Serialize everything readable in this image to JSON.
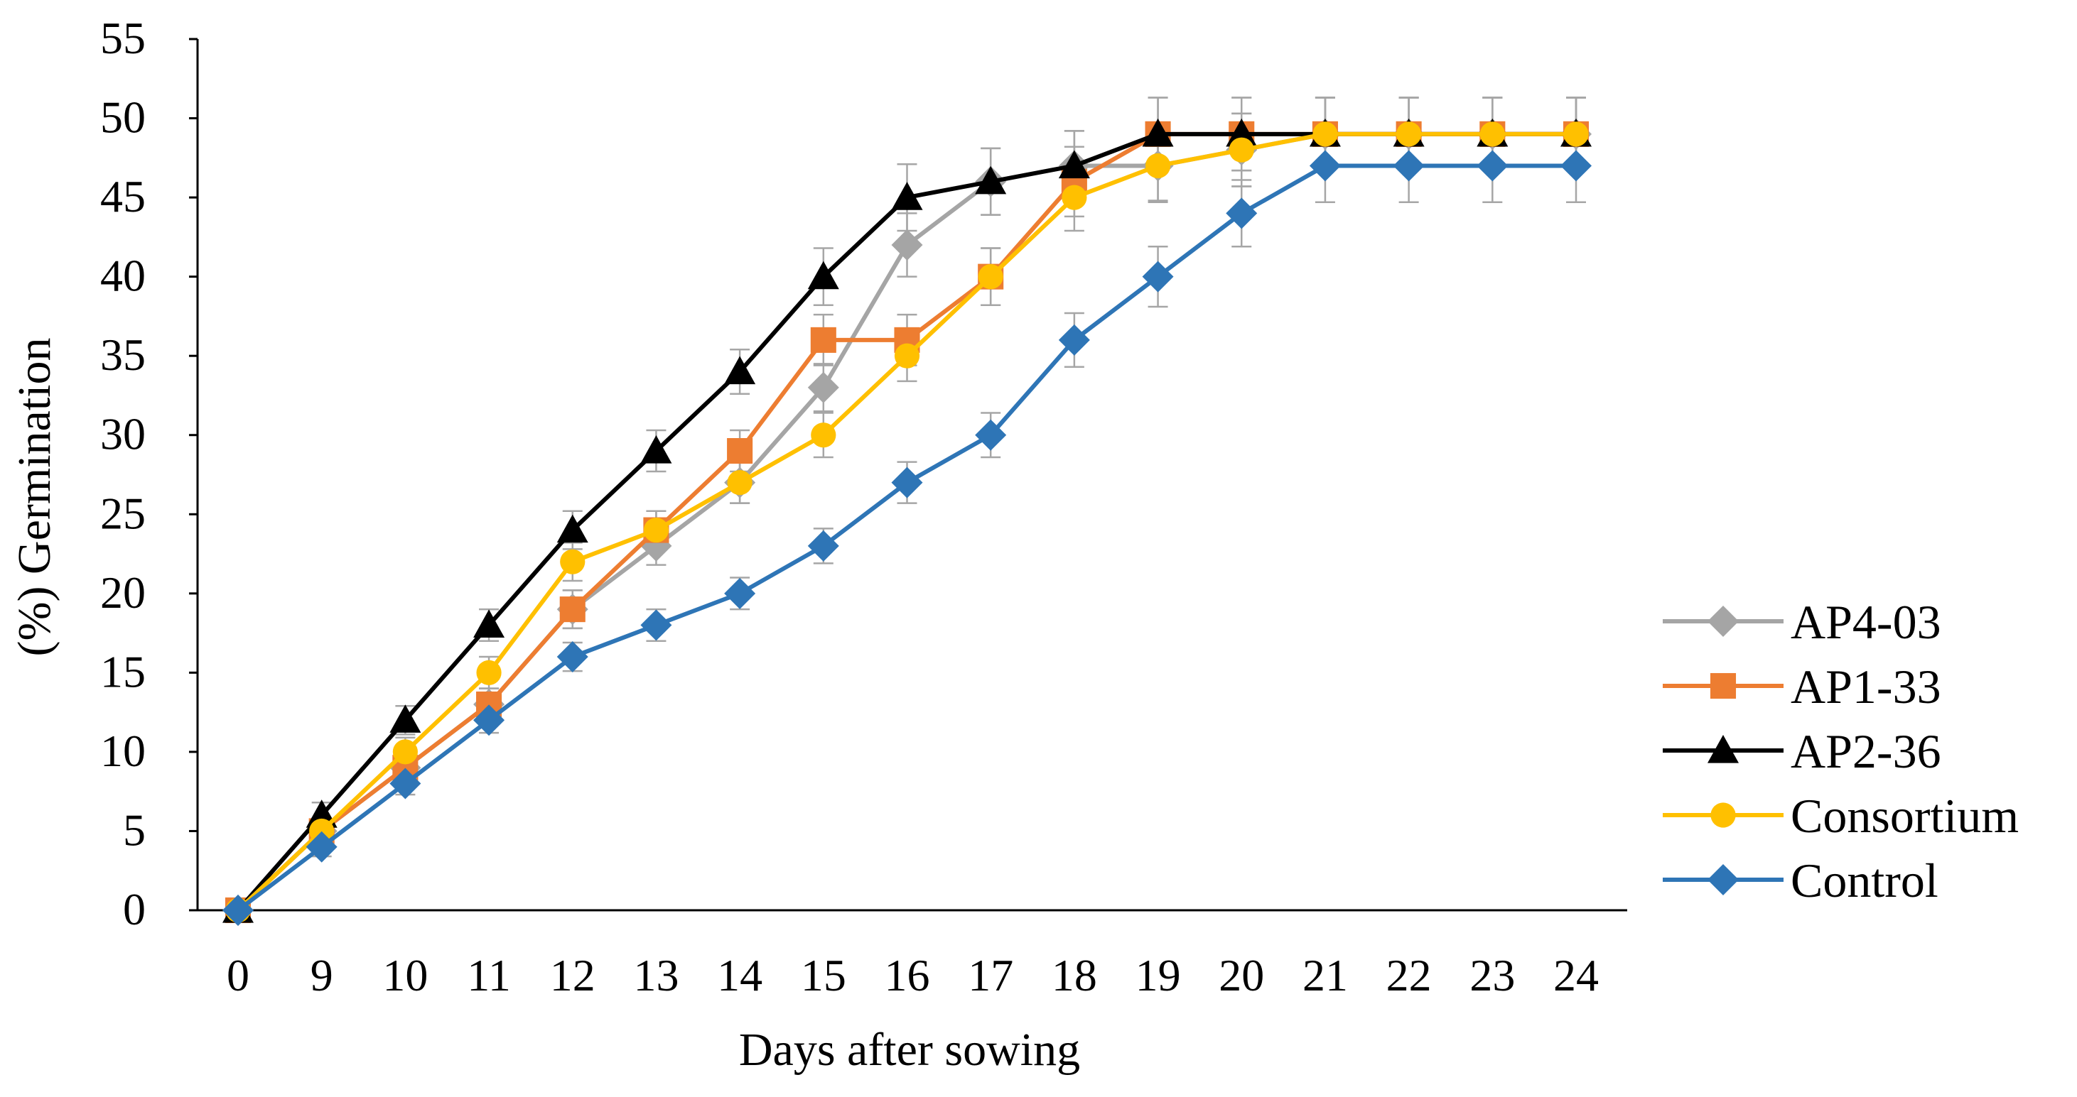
{
  "chart_data": {
    "type": "line",
    "title": "",
    "xlabel": "Days after sowing",
    "ylabel": "(%) Germination",
    "categories": [
      "0",
      "9",
      "10",
      "11",
      "12",
      "13",
      "14",
      "15",
      "16",
      "17",
      "18",
      "19",
      "20",
      "21",
      "22",
      "23",
      "24"
    ],
    "ylim": [
      0,
      55
    ],
    "yticks": [
      0,
      5,
      10,
      15,
      20,
      25,
      30,
      35,
      40,
      45,
      50,
      55
    ],
    "grid": false,
    "legend_position": "right",
    "error_bars": true,
    "series": [
      {
        "name": "AP4-03",
        "color": "#A5A5A5",
        "marker": "diamond",
        "values": [
          0,
          5,
          9,
          13,
          19,
          23,
          27,
          33,
          42,
          46,
          47,
          47,
          48,
          49,
          49,
          49,
          49
        ],
        "errors": [
          0,
          0.8,
          0.9,
          1.0,
          1.2,
          1.2,
          1.3,
          1.5,
          2.0,
          2.1,
          2.2,
          2.3,
          2.3,
          2.3,
          2.3,
          2.3,
          2.3
        ]
      },
      {
        "name": "AP1-33",
        "color": "#ED7D31",
        "marker": "square",
        "values": [
          0,
          5,
          9,
          13,
          19,
          24,
          29,
          36,
          36,
          40,
          46,
          49,
          49,
          49,
          49,
          49,
          49
        ],
        "errors": [
          0,
          0.8,
          0.9,
          1.0,
          1.2,
          1.2,
          1.3,
          1.6,
          1.6,
          1.8,
          2.2,
          2.3,
          2.3,
          2.3,
          2.3,
          2.3,
          2.3
        ]
      },
      {
        "name": "AP2-36",
        "color": "#000000",
        "marker": "triangle",
        "values": [
          0,
          6,
          12,
          18,
          24,
          29,
          34,
          40,
          45,
          46,
          47,
          49,
          49,
          49,
          49,
          49,
          49
        ],
        "errors": [
          0,
          0.8,
          0.9,
          1.0,
          1.2,
          1.3,
          1.4,
          1.8,
          2.1,
          2.1,
          2.2,
          2.3,
          2.3,
          2.3,
          2.3,
          2.3,
          2.3
        ]
      },
      {
        "name": "Consortium",
        "color": "#FFC000",
        "marker": "circle",
        "values": [
          0,
          5,
          10,
          15,
          22,
          24,
          27,
          30,
          35,
          40,
          45,
          47,
          48,
          49,
          49,
          49,
          49
        ],
        "errors": [
          0,
          0.8,
          0.9,
          1.0,
          1.2,
          1.2,
          1.3,
          1.4,
          1.6,
          1.8,
          2.1,
          2.2,
          2.3,
          2.3,
          2.3,
          2.3,
          2.3
        ]
      },
      {
        "name": "Control",
        "color": "#2E75B6",
        "marker": "diamond",
        "values": [
          0,
          4,
          8,
          12,
          16,
          18,
          20,
          23,
          27,
          30,
          36,
          40,
          44,
          47,
          47,
          47,
          47
        ],
        "errors": [
          0,
          0.6,
          0.7,
          0.8,
          0.9,
          1.0,
          1.0,
          1.1,
          1.3,
          1.4,
          1.7,
          1.9,
          2.1,
          2.3,
          2.3,
          2.3,
          2.3
        ]
      }
    ]
  }
}
